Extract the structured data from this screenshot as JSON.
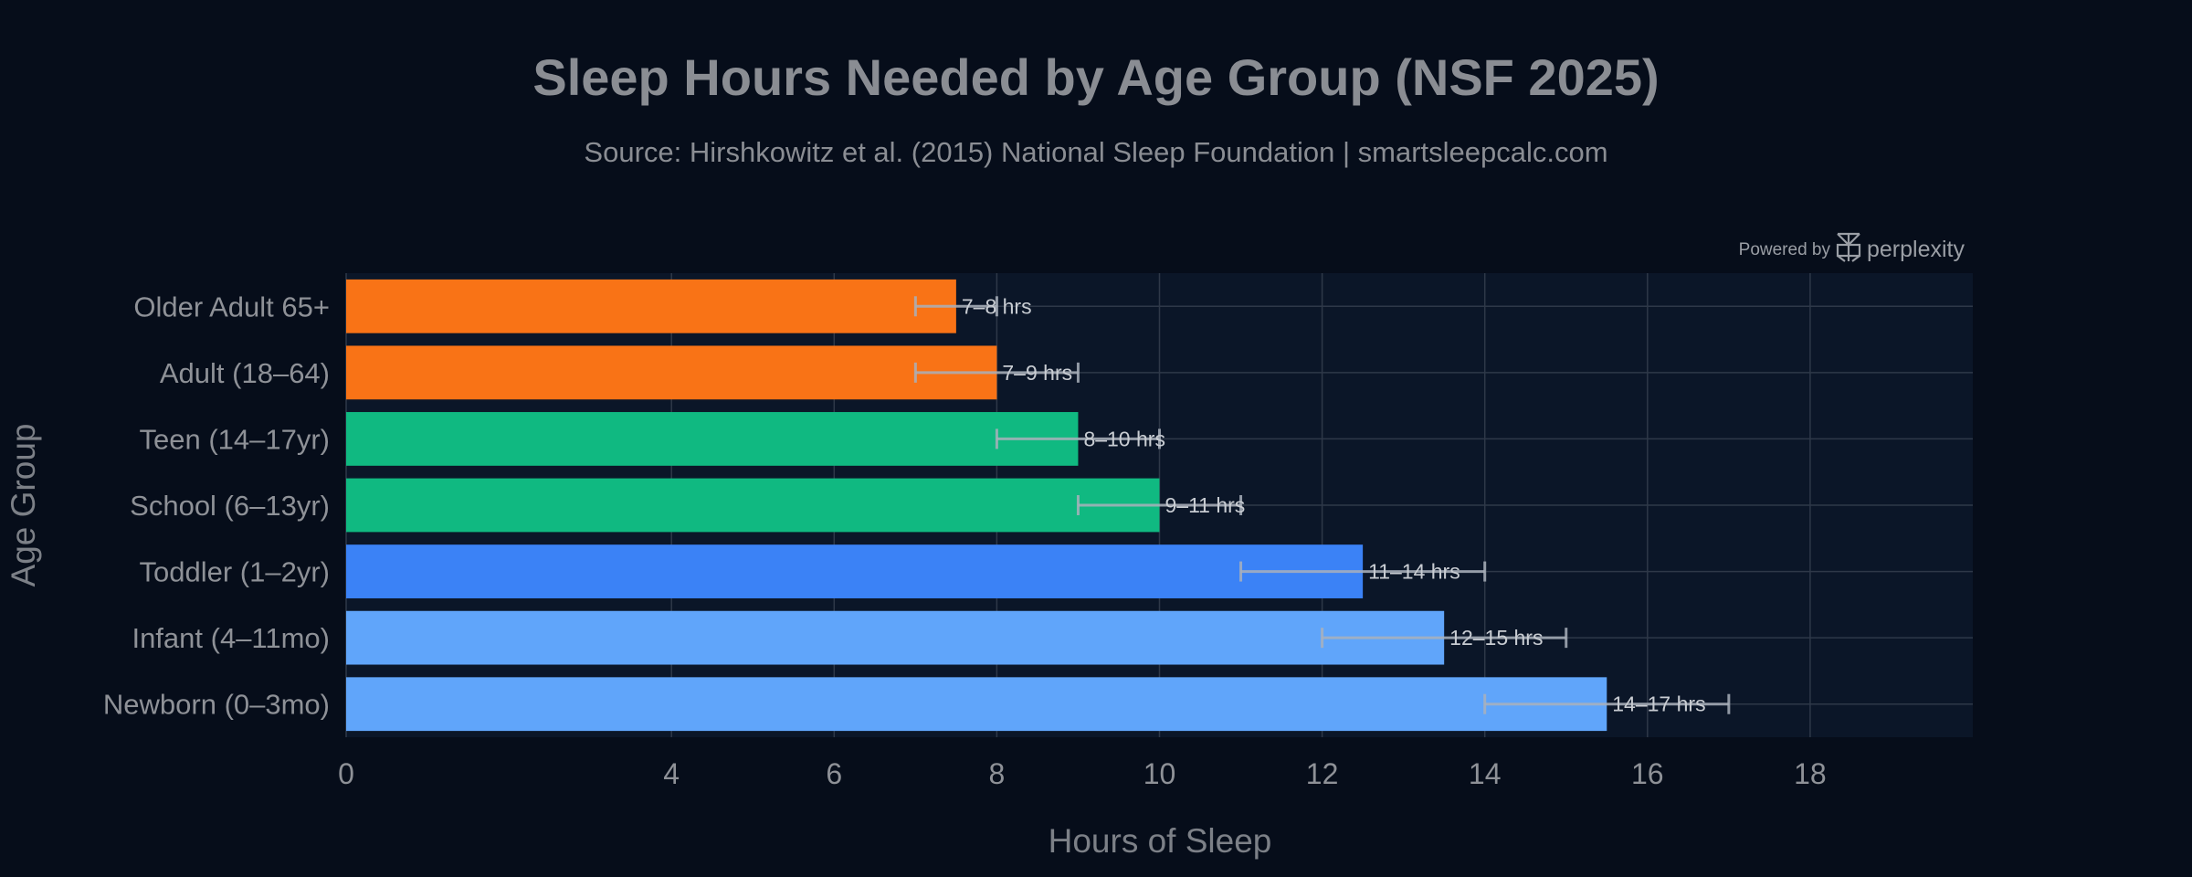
{
  "chart_data": {
    "type": "bar",
    "orientation": "horizontal",
    "title": "Sleep Hours Needed by Age Group (NSF 2025)",
    "subtitle": "Source: Hirshkowitz et al. (2015) National Sleep Foundation | smartsleepcalc.com",
    "xlabel": "Hours of Sleep",
    "ylabel": "Age Group",
    "xlim": [
      0,
      20
    ],
    "x_ticks": [
      0,
      4,
      6,
      8,
      10,
      12,
      14,
      16,
      18
    ],
    "x_tick_labels": [
      "0",
      "4",
      "6",
      "8",
      "10",
      "12",
      "14",
      "16",
      "18"
    ],
    "grid": true,
    "categories": [
      "Older Adult 65+",
      "Adult (18–64)",
      "Teen (14–17yr)",
      "School (6–13yr)",
      "Toddler (1–2yr)",
      "Infant (4–11mo)",
      "Newborn (0–3mo)"
    ],
    "values": [
      7.5,
      8,
      9,
      10,
      12.5,
      13.5,
      15.5
    ],
    "ranges": [
      [
        7,
        8
      ],
      [
        7,
        9
      ],
      [
        8,
        10
      ],
      [
        9,
        11
      ],
      [
        11,
        14
      ],
      [
        12,
        15
      ],
      [
        14,
        17
      ]
    ],
    "data_labels": [
      "7–8 hrs",
      "7–9 hrs",
      "8–10 hrs",
      "9–11 hrs",
      "11–14 hrs",
      "12–15 hrs",
      "14–17 hrs"
    ],
    "colors": [
      "#f97316",
      "#f97316",
      "#10b981",
      "#10b981",
      "#3b82f6",
      "#60a5fa",
      "#60a5fa"
    ]
  },
  "watermark": {
    "prefix": "Powered by",
    "brand": "perplexity",
    "icon": "perplexity-logo-icon"
  },
  "theme": {
    "background": "#060d1a",
    "plot_background": "#0b1628",
    "grid_color": "#2e3848",
    "error_bar_color": "#a9b0bb"
  }
}
